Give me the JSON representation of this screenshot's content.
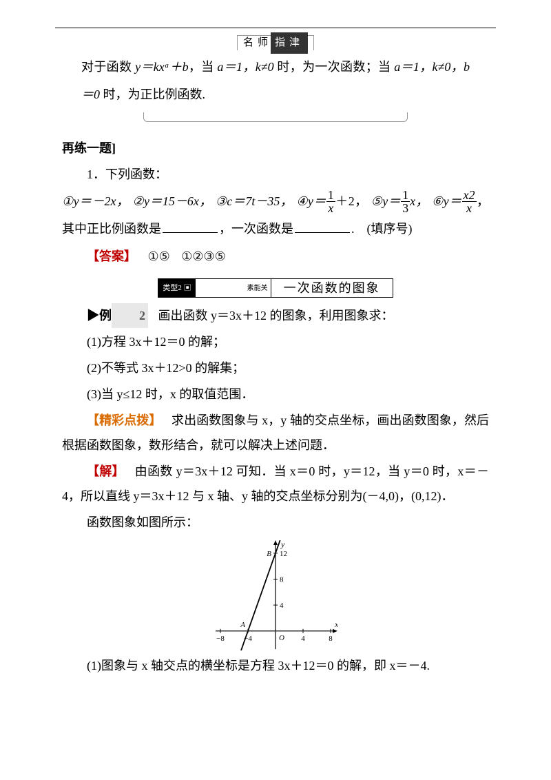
{
  "fonts": {
    "body_pt": 18,
    "small_pt": 15,
    "tiny_pt": 11
  },
  "colors": {
    "text": "#000000",
    "bg": "#ffffff",
    "answer": "#c00000",
    "highlight": "#d96b00",
    "border_light": "#999999",
    "bar_dark": "#000000",
    "bar_text": "#ffffff",
    "ex_num_bg": "#e8e8e8"
  },
  "tip": {
    "label_white": "名师",
    "label_dark": "指津",
    "body_prefix": "对于函数 ",
    "body_formula": "y＝kxᵃ＋b",
    "body_mid1": "，当 ",
    "body_cond1": "a＝1，k≠0",
    "body_mid2": " 时，为一次函数；当 ",
    "body_cond2": "a＝1，k≠0，b＝0",
    "body_mid3": " 时，为正比例函数."
  },
  "practice": {
    "heading": "再练一题]",
    "q_lead": "1．下列函数：",
    "items": {
      "p1": "①y＝－2x，",
      "p2": "②y＝15－6x，",
      "p3": "③c＝7t－35，",
      "p4_pre": "④y＝",
      "p4_frac_num": "1",
      "p4_frac_den": "x",
      "p4_post": "＋2，",
      "p5_pre": "⑤y＝",
      "p5_frac_num": "1",
      "p5_frac_den": "3",
      "p5_post": "x，",
      "p6_pre": "⑥y＝",
      "p6_frac_num": "x2",
      "p6_frac_den": "x"
    },
    "tail_1": "，其中正比例函数是",
    "tail_2": "，一次函数是",
    "tail_3": ".　(填序号)",
    "answer_label": "【答案】",
    "answer_1": "①⑤",
    "answer_2": "①②③⑤"
  },
  "topic": {
    "left_tag": "类型2 ▣",
    "right_small": "素能关",
    "title": "一次函数的图象"
  },
  "example": {
    "label_symbol": "▶例",
    "label_num": "2",
    "stem": "画出函数 y＝3x＋12 的图象，利用图象求：",
    "q1": "(1)方程 3x＋12＝0 的解；",
    "q2": "(2)不等式 3x＋12>0 的解集；",
    "q3": "(3)当 y≤12 时，x 的取值范围．",
    "hint_label": "【精彩点拨】",
    "hint_text": "求出函数图象与 x，y 轴的交点坐标，画出函数图象，然后根据函数图象，数形结合，就可以解决上述问题．",
    "sol_label": "【解】",
    "sol_p1": "由函数 y＝3x＋12 可知．当 x＝0 时，y＝12，当 y＝0 时，x＝－4，所以直线 y＝3x＋12 与 x 轴、y 轴的交点坐标分别为(－4,0)，(0,12)．",
    "sol_p2": "函数图象如图所示：",
    "sol_q1": "(1)图象与 x 轴交点的横坐标是方程 3x＋12＝0 的解，即 x＝－4."
  },
  "graph": {
    "type": "line",
    "width": 180,
    "height": 160,
    "xlim": [
      -9,
      9
    ],
    "ylim": [
      -3,
      14
    ],
    "xticks": [
      -8,
      -4,
      4,
      8
    ],
    "yticks": [
      4,
      8,
      12
    ],
    "origin_label": "O",
    "x_label": "x",
    "y_label": "y",
    "points": {
      "A": {
        "x": -4,
        "y": 0,
        "label": "A"
      },
      "B": {
        "x": 0,
        "y": 12,
        "label": "B"
      }
    },
    "line": {
      "slope": 3,
      "intercept": 12
    },
    "axis_color": "#000000",
    "line_color": "#000000",
    "tick_fontsize": 11,
    "background_color": "#ffffff"
  }
}
